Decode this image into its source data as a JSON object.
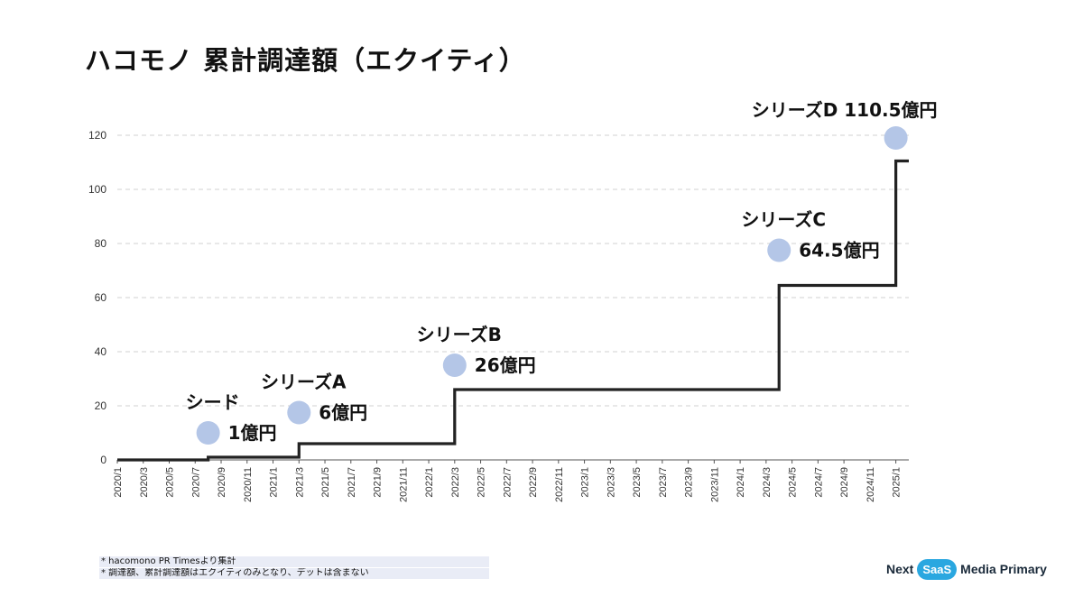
{
  "title": "ハコモノ 累計調達額（エクイティ）",
  "notes": [
    "* hacomono PR Timesより集計",
    "* 調達額、累計調達額はエクイティのみとなり、デットは含まない"
  ],
  "brand": {
    "left": "Next",
    "badge": "SaaS",
    "right": "Media Primary"
  },
  "colors": {
    "line": "#222222",
    "marker": "#b4c6e7",
    "grid": "#d0d0d0",
    "axis": "#555555"
  },
  "chart_data": {
    "type": "line",
    "step": true,
    "x_start": "2020/1",
    "x_end": "2025/2",
    "x_ticks": [
      "2020/1",
      "2020/3",
      "2020/5",
      "2020/7",
      "2020/9",
      "2020/11",
      "2021/1",
      "2021/3",
      "2021/5",
      "2021/7",
      "2021/9",
      "2021/11",
      "2022/1",
      "2022/3",
      "2022/5",
      "2022/7",
      "2022/9",
      "2022/11",
      "2023/1",
      "2023/3",
      "2023/5",
      "2023/7",
      "2023/9",
      "2023/11",
      "2024/1",
      "2024/3",
      "2024/5",
      "2024/7",
      "2024/9",
      "2024/11",
      "2025/1"
    ],
    "y_ticks": [
      0,
      20,
      40,
      60,
      80,
      100,
      120
    ],
    "ylim": [
      0,
      125
    ],
    "grid": true,
    "series": [
      {
        "x": [
          "2020/1",
          "2020/8",
          "2021/3",
          "2022/3",
          "2024/4",
          "2025/1"
        ],
        "y": [
          0,
          1,
          6,
          26,
          64.5,
          110.5
        ]
      }
    ],
    "annotations": [
      {
        "x": "2020/8",
        "y": 10,
        "round": "シード",
        "amount": "1億円"
      },
      {
        "x": "2021/3",
        "y": 17.5,
        "round": "シリーズA",
        "amount": "6億円"
      },
      {
        "x": "2022/3",
        "y": 35,
        "round": "シリーズB",
        "amount": "26億円"
      },
      {
        "x": "2024/4",
        "y": 77.5,
        "round": "シリーズC",
        "amount": "64.5億円"
      },
      {
        "x": "2025/1",
        "y": 119,
        "round": "シリーズD 110.5億円",
        "amount": ""
      }
    ]
  }
}
